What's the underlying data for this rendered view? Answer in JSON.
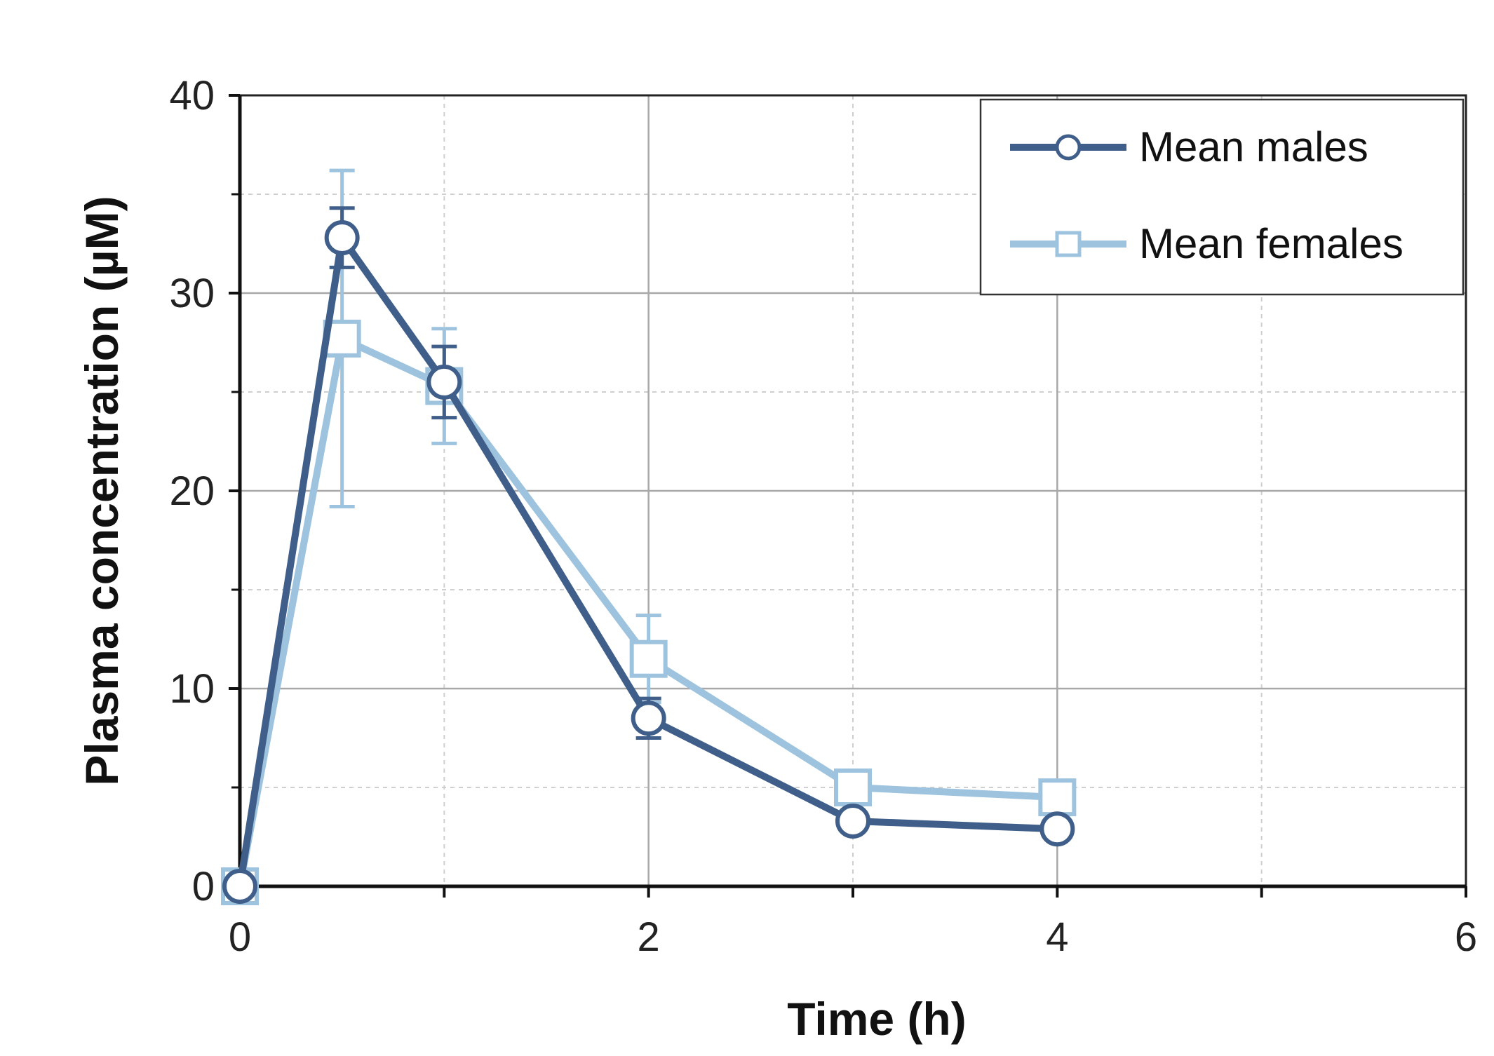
{
  "chart_data": {
    "type": "line",
    "title": "",
    "xlabel": "Time (h)",
    "ylabel": "Plasma concentration  (µM)",
    "xlim": [
      0,
      6
    ],
    "ylim": [
      0,
      40
    ],
    "x_ticks": [
      0,
      2,
      4,
      6
    ],
    "x_tick_labels": [
      "0",
      "2",
      "4",
      "6"
    ],
    "x_minor_ticks": [
      1,
      3,
      5
    ],
    "y_ticks": [
      0,
      10,
      20,
      30,
      40
    ],
    "y_tick_labels": [
      "0",
      "10",
      "20",
      "30",
      "40"
    ],
    "y_minor_ticks": [
      5,
      15,
      25,
      35
    ],
    "grid": true,
    "legend_position": "top-right",
    "series": [
      {
        "name": "Mean males",
        "color": "#3F5F8A",
        "marker": "circle",
        "x": [
          0,
          0.5,
          1,
          2,
          3,
          4
        ],
        "y": [
          0,
          32.8,
          25.5,
          8.5,
          3.3,
          2.9
        ],
        "err": [
          0,
          1.5,
          1.8,
          1.0,
          0,
          0
        ]
      },
      {
        "name": "Mean females",
        "color": "#9DC3DE",
        "marker": "square",
        "x": [
          0,
          0.5,
          1,
          2,
          3,
          4
        ],
        "y": [
          0,
          27.7,
          25.3,
          11.5,
          5.0,
          4.5
        ],
        "err": [
          0,
          8.5,
          2.9,
          2.2,
          0,
          0
        ]
      }
    ]
  }
}
